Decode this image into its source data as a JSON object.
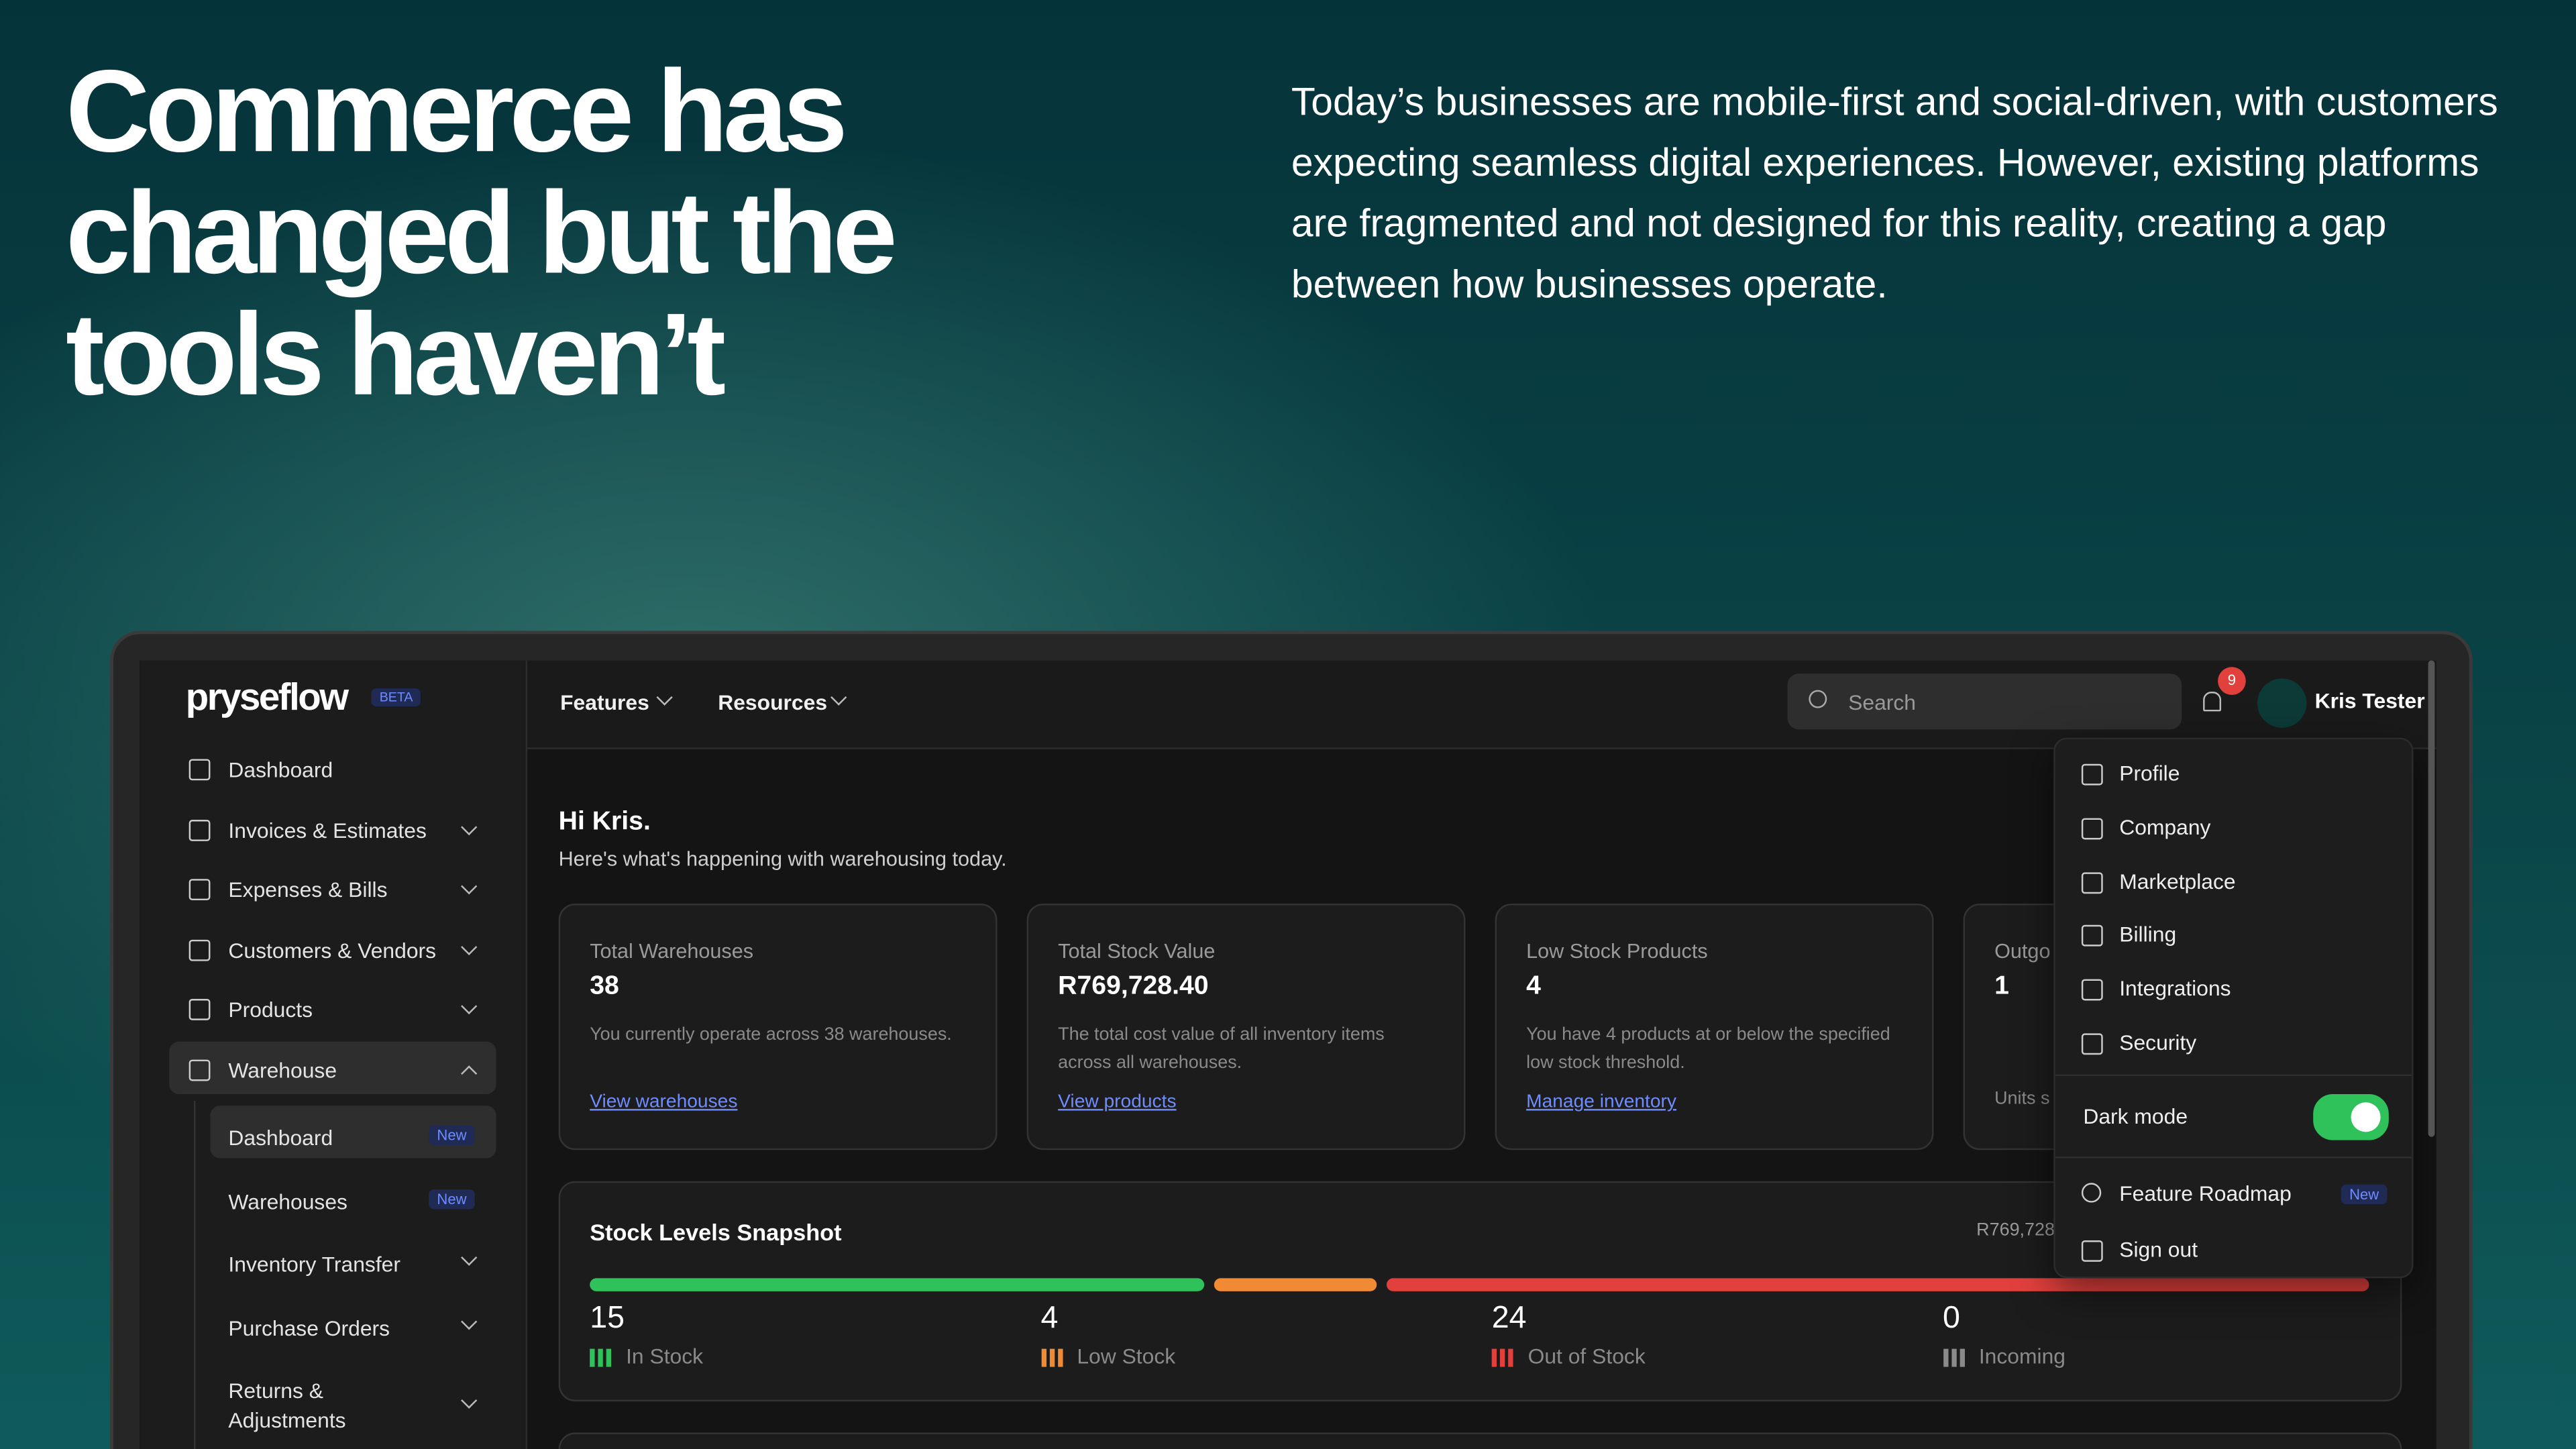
{
  "hero": {
    "title": "Commerce has changed but the tools haven’t",
    "body": "Today’s businesses are mobile-first and social-driven, with customers expecting seamless digital experiences. However, existing platforms are fragmented and not designed for this reality, creating a gap between how businesses operate."
  },
  "app": {
    "brand": "pryseflow",
    "brand_badge": "BETA",
    "nav": [
      "Features",
      "Resources"
    ],
    "search": "Search",
    "notifications": "9",
    "user": "Kris Tester",
    "sidebar": [
      {
        "label": "Dashboard",
        "expandable": false
      },
      {
        "label": "Invoices & Estimates",
        "expandable": true
      },
      {
        "label": "Expenses & Bills",
        "expandable": true
      },
      {
        "label": "Customers & Vendors",
        "expandable": true
      },
      {
        "label": "Products",
        "expandable": true
      },
      {
        "label": "Warehouse",
        "expandable": true,
        "open": true
      }
    ],
    "subnav": [
      {
        "label": "Dashboard",
        "badge": "New",
        "active": true
      },
      {
        "label": "Warehouses",
        "badge": "New"
      },
      {
        "label": "Inventory Transfer",
        "expandable": true
      },
      {
        "label": "Purchase Orders",
        "expandable": true
      },
      {
        "label": "Returns & Adjustments",
        "expandable": true
      }
    ],
    "greeting": "Hi Kris.",
    "greeting_sub": "Here's what's happening with warehousing today.",
    "cards": [
      {
        "label": "Total Warehouses",
        "value": "38",
        "text": "You currently operate across 38 warehouses.",
        "link": "View warehouses"
      },
      {
        "label": "Total Stock Value",
        "value": "R769,728.40",
        "text": "The total cost value of all inventory items across all warehouses.",
        "link": "View products"
      },
      {
        "label": "Low Stock Products",
        "value": "4",
        "text": "You have 4 products at or below the specified low stock threshold.",
        "link": "Manage inventory"
      },
      {
        "label": "Outgo",
        "value": "1",
        "text": "Units s"
      }
    ],
    "snapshot": {
      "title": "Stock Levels Snapshot",
      "total": "R769,728",
      "items": [
        {
          "label": "In Stock",
          "value": 15,
          "color": "#2fc15a"
        },
        {
          "label": "Low Stock",
          "value": 4,
          "color": "#f08a35"
        },
        {
          "label": "Out of Stock",
          "value": 24,
          "color": "#e2403d"
        },
        {
          "label": "Incoming",
          "value": 0,
          "color": "#8a8a8a"
        }
      ]
    },
    "menu": [
      "Profile",
      "Company",
      "Marketplace",
      "Billing",
      "Integrations",
      "Security"
    ],
    "dark_mode": "Dark mode",
    "dark_mode_on": true,
    "roadmap": "Feature Roadmap",
    "roadmap_badge": "New",
    "signout": "Sign out"
  }
}
